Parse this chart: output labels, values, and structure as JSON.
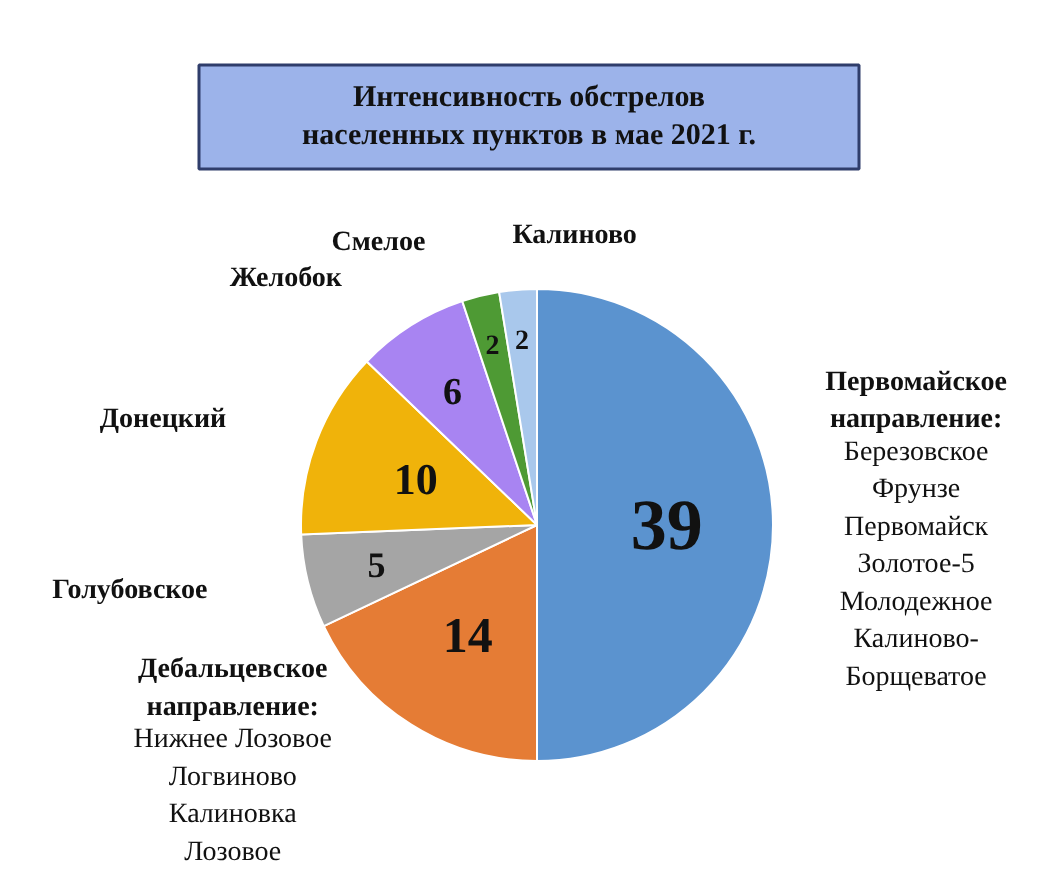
{
  "chart_data": {
    "type": "pie",
    "title": "Интенсивность обстрелов\nнаселенных пунктов в мае 2021 г.",
    "categories": [
      "Первомайское\nнаправление:\nБерезовское\nФрунзе\nПервомайск\nЗолотое-5\nМолодежное\nКалиново-\nБорщеватое",
      "Дебальцевское\nнаправление:\nНижнее Лозовое\nЛогвиново\nКалиновка\nЛозовое",
      "Голубовское",
      "Донецкий",
      "Желобок",
      "Смелое",
      "Калиново"
    ],
    "values": [
      39,
      14,
      5,
      10,
      6,
      2,
      2
    ],
    "colors": [
      "#5b93cf",
      "#e57c35",
      "#a5a5a5",
      "#f0b30a",
      "#a884f2",
      "#4e9a34",
      "#a9c8ec"
    ],
    "data_labels": true
  }
}
